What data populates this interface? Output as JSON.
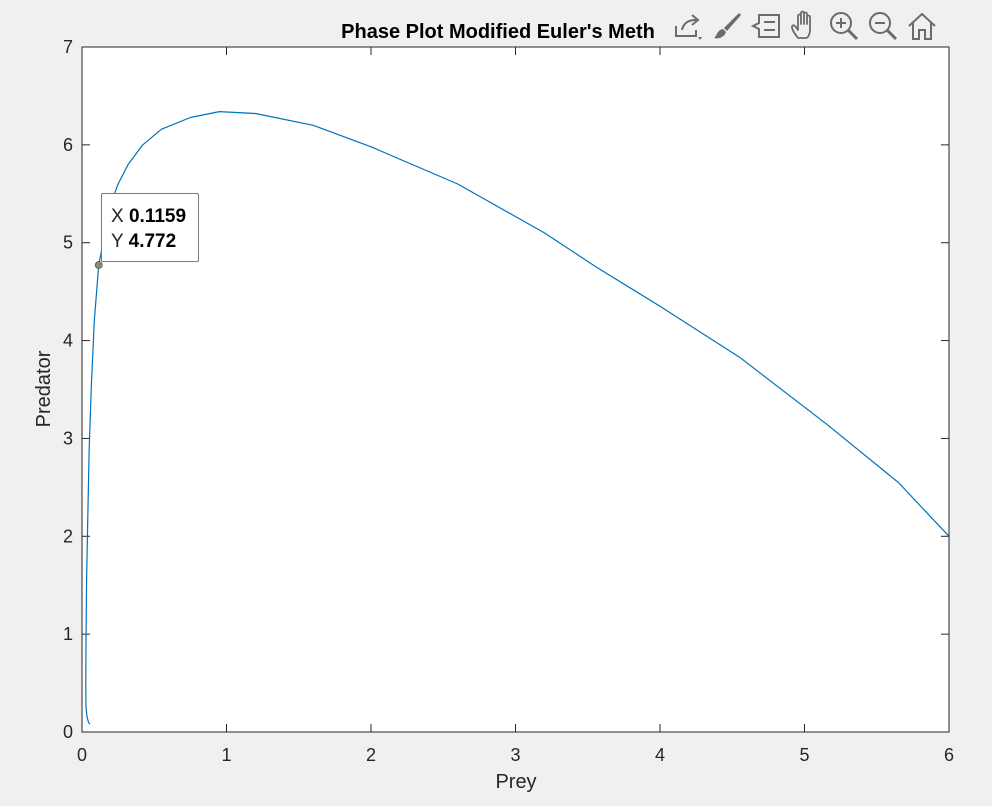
{
  "toolbar": {
    "icons": [
      "export-icon",
      "brush-icon",
      "data-tips-icon",
      "pan-icon",
      "zoom-in-icon",
      "zoom-out-icon",
      "home-icon"
    ]
  },
  "datatip": {
    "x_label": "X",
    "x_value": "0.1159",
    "y_label": "Y",
    "y_value": "4.772"
  },
  "chart_data": {
    "type": "line",
    "title": "Phase Plot Modified Euler's Meth",
    "xlabel": "Prey",
    "ylabel": "Predator",
    "xlim": [
      0,
      6
    ],
    "ylim": [
      0,
      7
    ],
    "xticks": [
      "0",
      "1",
      "2",
      "3",
      "4",
      "5",
      "6"
    ],
    "yticks": [
      "0",
      "1",
      "2",
      "3",
      "4",
      "5",
      "6",
      "7"
    ],
    "grid": false,
    "line_color": "#0072bd",
    "series": [
      {
        "x": [
          6,
          5.65,
          5.15,
          4.55,
          4.0,
          3.55,
          3.2,
          2.6,
          2.0,
          1.6,
          1.2,
          0.95,
          0.75,
          0.55,
          0.42,
          0.32,
          0.25,
          0.2,
          0.1159,
          0.085,
          0.065,
          0.05,
          0.04,
          0.032,
          0.028,
          0.026,
          0.028,
          0.035,
          0.045,
          0.055
        ],
        "y": [
          2.0,
          2.55,
          3.15,
          3.83,
          4.35,
          4.76,
          5.1,
          5.6,
          5.98,
          6.2,
          6.32,
          6.34,
          6.28,
          6.16,
          6.0,
          5.8,
          5.6,
          5.4,
          4.772,
          4.2,
          3.55,
          2.9,
          2.2,
          1.55,
          0.95,
          0.5,
          0.25,
          0.15,
          0.1,
          0.08
        ]
      }
    ],
    "marker": {
      "x": 0.1159,
      "y": 4.772
    }
  }
}
